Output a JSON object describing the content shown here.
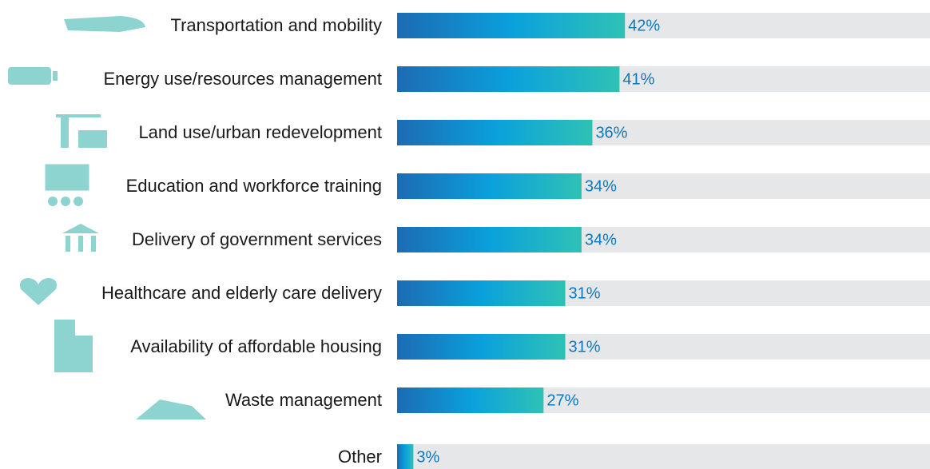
{
  "chart_data": {
    "type": "bar",
    "orientation": "horizontal",
    "categories": [
      "Transportation and mobility",
      "Energy use/resources management",
      "Land use/urban redevelopment",
      "Education and workforce training",
      "Delivery of government services",
      "Healthcare and elderly care delivery",
      "Availability of affordable housing",
      "Waste management",
      "Other"
    ],
    "values": [
      42,
      41,
      36,
      34,
      34,
      31,
      31,
      27,
      3
    ],
    "value_labels": [
      "42%",
      "41%",
      "36%",
      "34%",
      "34%",
      "31%",
      "31%",
      "27%",
      "3%"
    ],
    "colors": [
      "#1d6bb2",
      "#0aa0dc",
      "#2ec2b5"
    ],
    "xlim": [
      0,
      100
    ]
  }
}
